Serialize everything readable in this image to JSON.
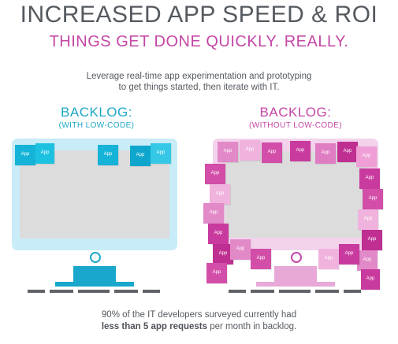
{
  "header": {
    "title": "INCREASED APP SPEED & ROI",
    "subtitle": "THINGS GET DONE QUICKLY. REALLY.",
    "intro_line1": "Leverage real-time app experimentation and prototyping",
    "intro_line2": "to get things started, then iterate with IT."
  },
  "left_panel": {
    "label": "BACKLOG:",
    "sublabel": "(WITH LOW-CODE)",
    "note_text": "App",
    "color_accent": "#1fa7c7"
  },
  "right_panel": {
    "label": "BACKLOG:",
    "sublabel": "(WITHOUT LOW-CODE)",
    "note_text": "App",
    "color_accent": "#c447a6"
  },
  "footer": {
    "line1": "90% of the IT developers surveyed currently had",
    "bold": "less than 5 app requests",
    "line2_rest": " per month in backlog."
  }
}
